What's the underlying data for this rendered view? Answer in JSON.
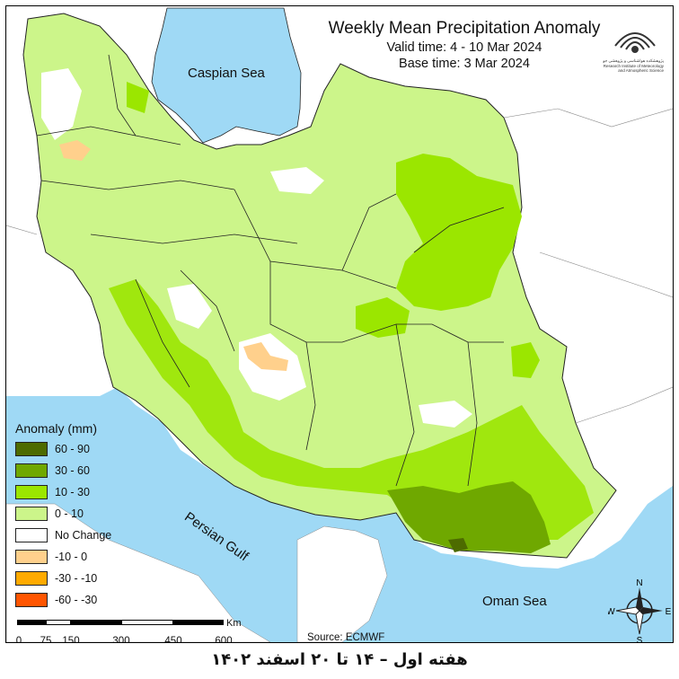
{
  "title": "Weekly Mean Precipitation Anomaly",
  "valid_time": "Valid time:  4 - 10 Mar 2024",
  "base_time": "Base time: 3 Mar 2024",
  "labels": {
    "caspian": "Caspian Sea",
    "gulf": "Persian Gulf",
    "oman": "Oman Sea"
  },
  "legend": {
    "title": "Anomaly (mm)",
    "items": [
      {
        "label": "60 - 90",
        "color": "#4d6b00"
      },
      {
        "label": "30 - 60",
        "color": "#6fa800"
      },
      {
        "label": "10 - 30",
        "color": "#9be600"
      },
      {
        "label": "0 - 10",
        "color": "#ccf58a"
      },
      {
        "label": "No Change",
        "color": "#ffffff"
      },
      {
        "label": "-10 - 0",
        "color": "#ffd08c"
      },
      {
        "label": "-30 - -10",
        "color": "#ffaa00"
      },
      {
        "label": "-60 - -30",
        "color": "#ff5500"
      }
    ]
  },
  "scale": {
    "unit": "Km",
    "ticks": [
      "0",
      "75",
      "150",
      "300",
      "450",
      "600"
    ]
  },
  "source": "Source: ECMWF",
  "compass": {
    "n": "N",
    "s": "S",
    "e": "E",
    "w": "W"
  },
  "logo_text": "پژوهشکده هواشناسی و پژوهشی جو Research Institute of Meteorology and Atmospheric Science",
  "persian_footer": "هفته اول – ۱۴ تا ۲۰ اسفند ۱۴۰۲",
  "colors": {
    "sea": "#9fd9f5",
    "land_outside": "#ffffff",
    "border": "#222222"
  }
}
